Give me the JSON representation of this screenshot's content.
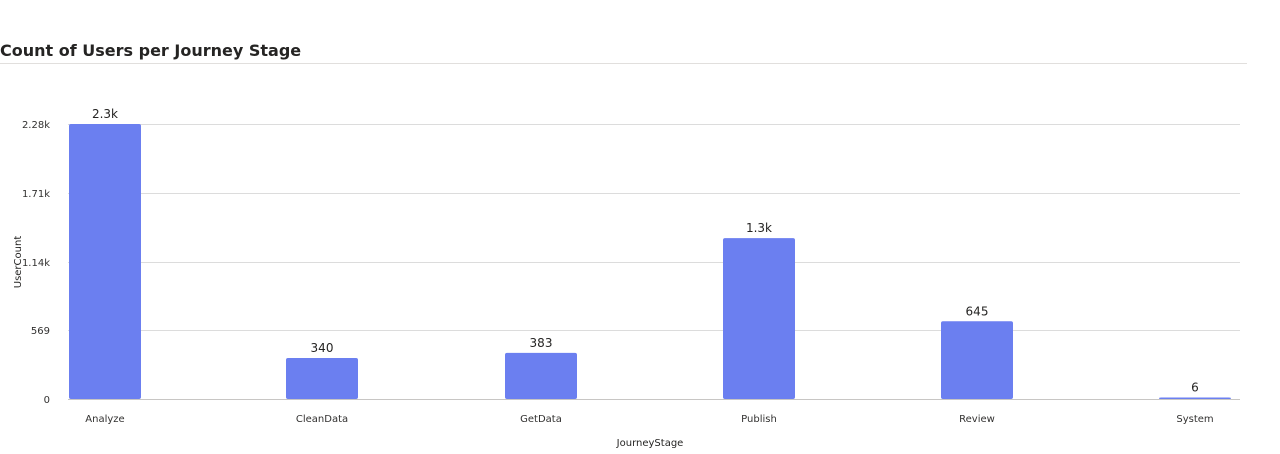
{
  "chart_data": {
    "type": "bar",
    "title": "Count of Users per Journey Stage",
    "xlabel": "JourneyStage",
    "ylabel": "UserCount",
    "categories": [
      "Analyze",
      "CleanData",
      "GetData",
      "Publish",
      "Review",
      "System"
    ],
    "values": [
      2282,
      340,
      383,
      1335,
      645,
      6
    ],
    "data_labels": [
      "2.3k",
      "340",
      "383",
      "1.3k",
      "645",
      "6"
    ],
    "y_ticks": [
      0,
      569,
      1141,
      1712,
      2282
    ],
    "y_tick_labels": [
      "0",
      "569",
      "1.14k",
      "1.71k",
      "2.28k"
    ],
    "ylim": [
      0,
      2282
    ],
    "grid": true,
    "legend": "none",
    "bar_color": "#6b7ff0"
  }
}
